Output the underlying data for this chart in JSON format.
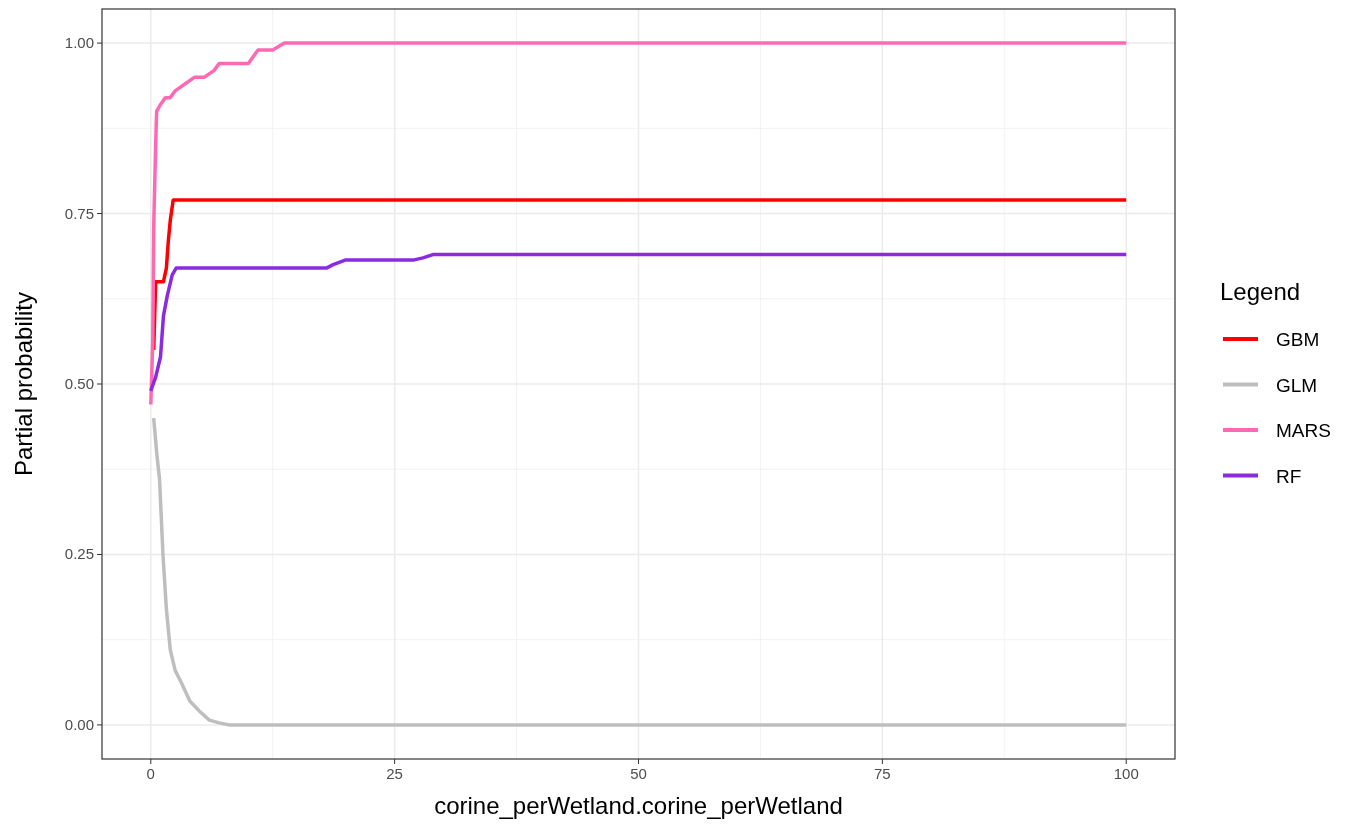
{
  "chart_data": {
    "type": "line",
    "xlabel": "corine_perWetland.corine_perWetland",
    "ylabel": "Partial probability",
    "legend_title": "Legend",
    "legend": "right",
    "grid": true,
    "xlim": [
      -5,
      105
    ],
    "xticks": [
      0,
      25,
      50,
      75,
      100
    ],
    "ylim": [
      -0.05,
      1.05
    ],
    "yticks": [
      {
        "value": 0,
        "label": "0.00"
      },
      {
        "value": 0.25,
        "label": "0.25"
      },
      {
        "value": 0.5,
        "label": "0.50"
      },
      {
        "value": 0.75,
        "label": "0.75"
      },
      {
        "value": 1,
        "label": "1.00"
      }
    ],
    "series": [
      {
        "name": "GBM",
        "color": "#ff0000",
        "x": [
          0.3,
          0.5,
          1.3,
          1.6,
          1.8,
          2,
          2.3,
          100
        ],
        "values": [
          0.55,
          0.65,
          0.65,
          0.67,
          0.71,
          0.74,
          0.77,
          0.77
        ]
      },
      {
        "name": "GLM",
        "color": "#bebebe",
        "x": [
          0.3,
          0.6,
          0.9,
          1.25,
          1.6,
          2,
          2.5,
          3.2,
          4,
          5,
          6,
          7,
          8,
          100
        ],
        "values": [
          0.45,
          0.4,
          0.36,
          0.25,
          0.17,
          0.11,
          0.08,
          0.06,
          0.035,
          0.02,
          0.007,
          0.003,
          0,
          0
        ]
      },
      {
        "name": "MARS",
        "color": "#ff69b4",
        "x": [
          0,
          0.2,
          0.3,
          0.5,
          0.6,
          1,
          1.5,
          2,
          2.5,
          3.5,
          4.5,
          5.5,
          6.5,
          7,
          10,
          11,
          12.5,
          13.7,
          100
        ],
        "values": [
          0.47,
          0.56,
          0.73,
          0.85,
          0.9,
          0.91,
          0.92,
          0.92,
          0.93,
          0.94,
          0.95,
          0.95,
          0.96,
          0.97,
          0.97,
          0.99,
          0.99,
          1,
          1
        ]
      },
      {
        "name": "RF",
        "color": "#8a2be2",
        "x": [
          0,
          0.5,
          1,
          1.3,
          1.7,
          2.2,
          2.6,
          18,
          18.7,
          20,
          27,
          27.9,
          29,
          100
        ],
        "values": [
          0.49,
          0.51,
          0.54,
          0.6,
          0.63,
          0.66,
          0.67,
          0.67,
          0.675,
          0.682,
          0.682,
          0.685,
          0.69,
          0.69
        ]
      }
    ]
  }
}
